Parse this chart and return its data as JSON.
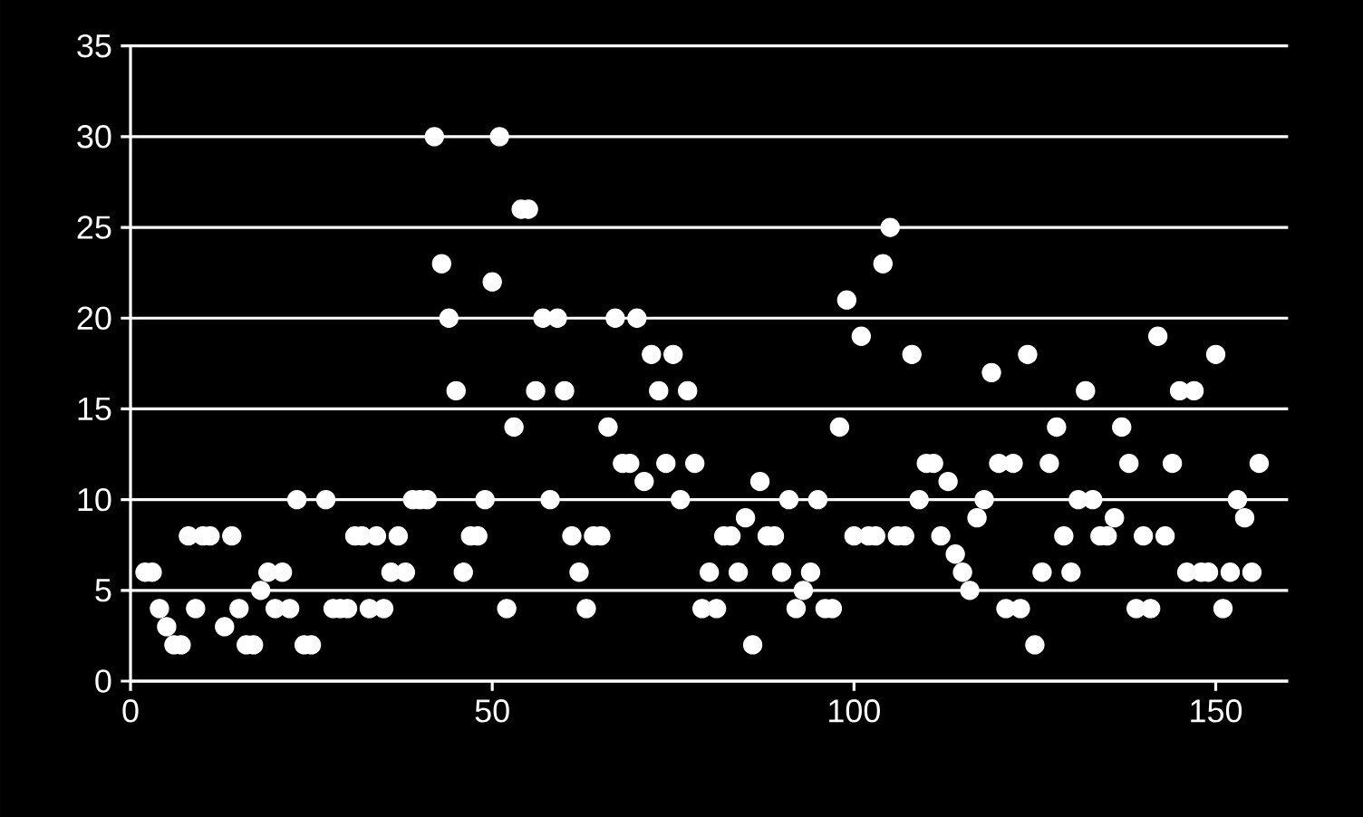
{
  "chart_data": {
    "type": "scatter",
    "x": [
      2,
      3,
      4,
      5,
      6,
      7,
      8,
      9,
      10,
      11,
      13,
      14,
      15,
      16,
      17,
      18,
      19,
      20,
      21,
      22,
      23,
      24,
      25,
      27,
      28,
      29,
      30,
      31,
      32,
      33,
      34,
      35,
      36,
      37,
      38,
      39,
      40,
      41,
      42,
      43,
      44,
      45,
      46,
      47,
      48,
      49,
      50,
      51,
      52,
      53,
      54,
      55,
      56,
      57,
      58,
      59,
      60,
      61,
      62,
      63,
      64,
      65,
      66,
      67,
      68,
      69,
      70,
      71,
      72,
      73,
      74,
      75,
      76,
      77,
      78,
      79,
      80,
      81,
      82,
      83,
      84,
      85,
      86,
      87,
      88,
      89,
      90,
      91,
      92,
      93,
      94,
      95,
      96,
      97,
      98,
      99,
      100,
      101,
      102,
      103,
      104,
      105,
      106,
      107,
      108,
      109,
      110,
      111,
      112,
      113,
      114,
      115,
      116,
      117,
      118,
      119,
      120,
      121,
      122,
      123,
      124,
      125,
      126,
      127,
      128,
      129,
      130,
      131,
      132,
      133,
      134,
      135,
      136,
      137,
      138,
      139,
      140,
      141,
      142,
      143,
      144,
      145,
      146,
      147,
      148,
      149,
      150,
      151,
      152,
      153,
      154,
      155,
      156
    ],
    "values": [
      6,
      6,
      4,
      3,
      2,
      2,
      8,
      4,
      8,
      8,
      3,
      8,
      4,
      2,
      2,
      5,
      6,
      4,
      6,
      4,
      10,
      2,
      2,
      10,
      4,
      4,
      4,
      8,
      8,
      4,
      8,
      4,
      6,
      8,
      6,
      10,
      10,
      10,
      30,
      23,
      20,
      16,
      6,
      8,
      8,
      10,
      22,
      30,
      4,
      14,
      26,
      26,
      16,
      20,
      10,
      20,
      16,
      8,
      6,
      4,
      8,
      8,
      14,
      20,
      12,
      12,
      20,
      11,
      18,
      16,
      12,
      18,
      10,
      16,
      12,
      4,
      6,
      4,
      8,
      8,
      6,
      9,
      2,
      11,
      8,
      8,
      6,
      10,
      4,
      5,
      6,
      10,
      4,
      4,
      14,
      21,
      8,
      19,
      8,
      8,
      23,
      25,
      8,
      8,
      18,
      10,
      12,
      12,
      8,
      11,
      7,
      6,
      5,
      9,
      10,
      17,
      12,
      4,
      12,
      4,
      18,
      2,
      6,
      12,
      14,
      8,
      6,
      10,
      16,
      10,
      8,
      8,
      9,
      14,
      12,
      4,
      8,
      4,
      19,
      8,
      12,
      16,
      6,
      16,
      6,
      6,
      18,
      4,
      6,
      10,
      9,
      6,
      12
    ],
    "color": "#ffffff",
    "marker": "circle",
    "xlim": [
      0,
      160
    ],
    "xticks": [
      0,
      50,
      100,
      150
    ],
    "ylim": [
      0,
      35
    ],
    "yticks": [
      0,
      5,
      10,
      15,
      20,
      25,
      30,
      35
    ],
    "grid": "y"
  }
}
